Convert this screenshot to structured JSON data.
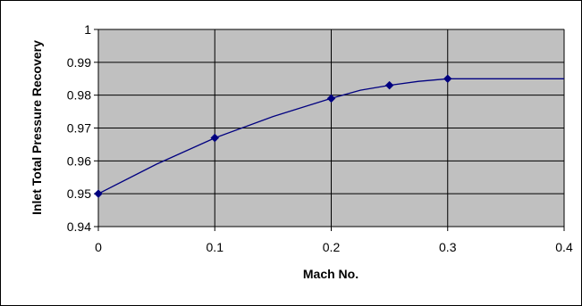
{
  "chart_data": {
    "type": "line",
    "xlabel": "Mach No.",
    "ylabel": "Inlet Total Pressure Recovery",
    "xlim": [
      0,
      0.4
    ],
    "ylim": [
      0.94,
      1
    ],
    "x_ticks": [
      0,
      0.1,
      0.2,
      0.3,
      0.4
    ],
    "x_tick_labels": [
      "0",
      "0.1",
      "0.2",
      "0.3",
      "0.4"
    ],
    "y_ticks": [
      0.94,
      0.95,
      0.96,
      0.97,
      0.98,
      0.99,
      1
    ],
    "y_tick_labels": [
      "0.94",
      "0.95",
      "0.96",
      "0.97",
      "0.98",
      "0.99",
      "1"
    ],
    "grid": true,
    "legend": "none",
    "colors": {
      "plot_background": "#c0c0c0",
      "line": "#000080",
      "marker": "#000080",
      "grid": "#000000"
    },
    "series": [
      {
        "markers": "diamond",
        "points": [
          {
            "x": 0,
            "y": 0.95
          },
          {
            "x": 0.1,
            "y": 0.967
          },
          {
            "x": 0.2,
            "y": 0.979
          },
          {
            "x": 0.25,
            "y": 0.983
          },
          {
            "x": 0.3,
            "y": 0.985
          }
        ],
        "curve": [
          {
            "x": 0,
            "y": 0.95
          },
          {
            "x": 0.05,
            "y": 0.959
          },
          {
            "x": 0.1,
            "y": 0.967
          },
          {
            "x": 0.15,
            "y": 0.9735
          },
          {
            "x": 0.2,
            "y": 0.979
          },
          {
            "x": 0.225,
            "y": 0.9815
          },
          {
            "x": 0.25,
            "y": 0.983
          },
          {
            "x": 0.275,
            "y": 0.9842
          },
          {
            "x": 0.3,
            "y": 0.985
          },
          {
            "x": 0.35,
            "y": 0.985
          },
          {
            "x": 0.4,
            "y": 0.985
          }
        ]
      }
    ]
  }
}
